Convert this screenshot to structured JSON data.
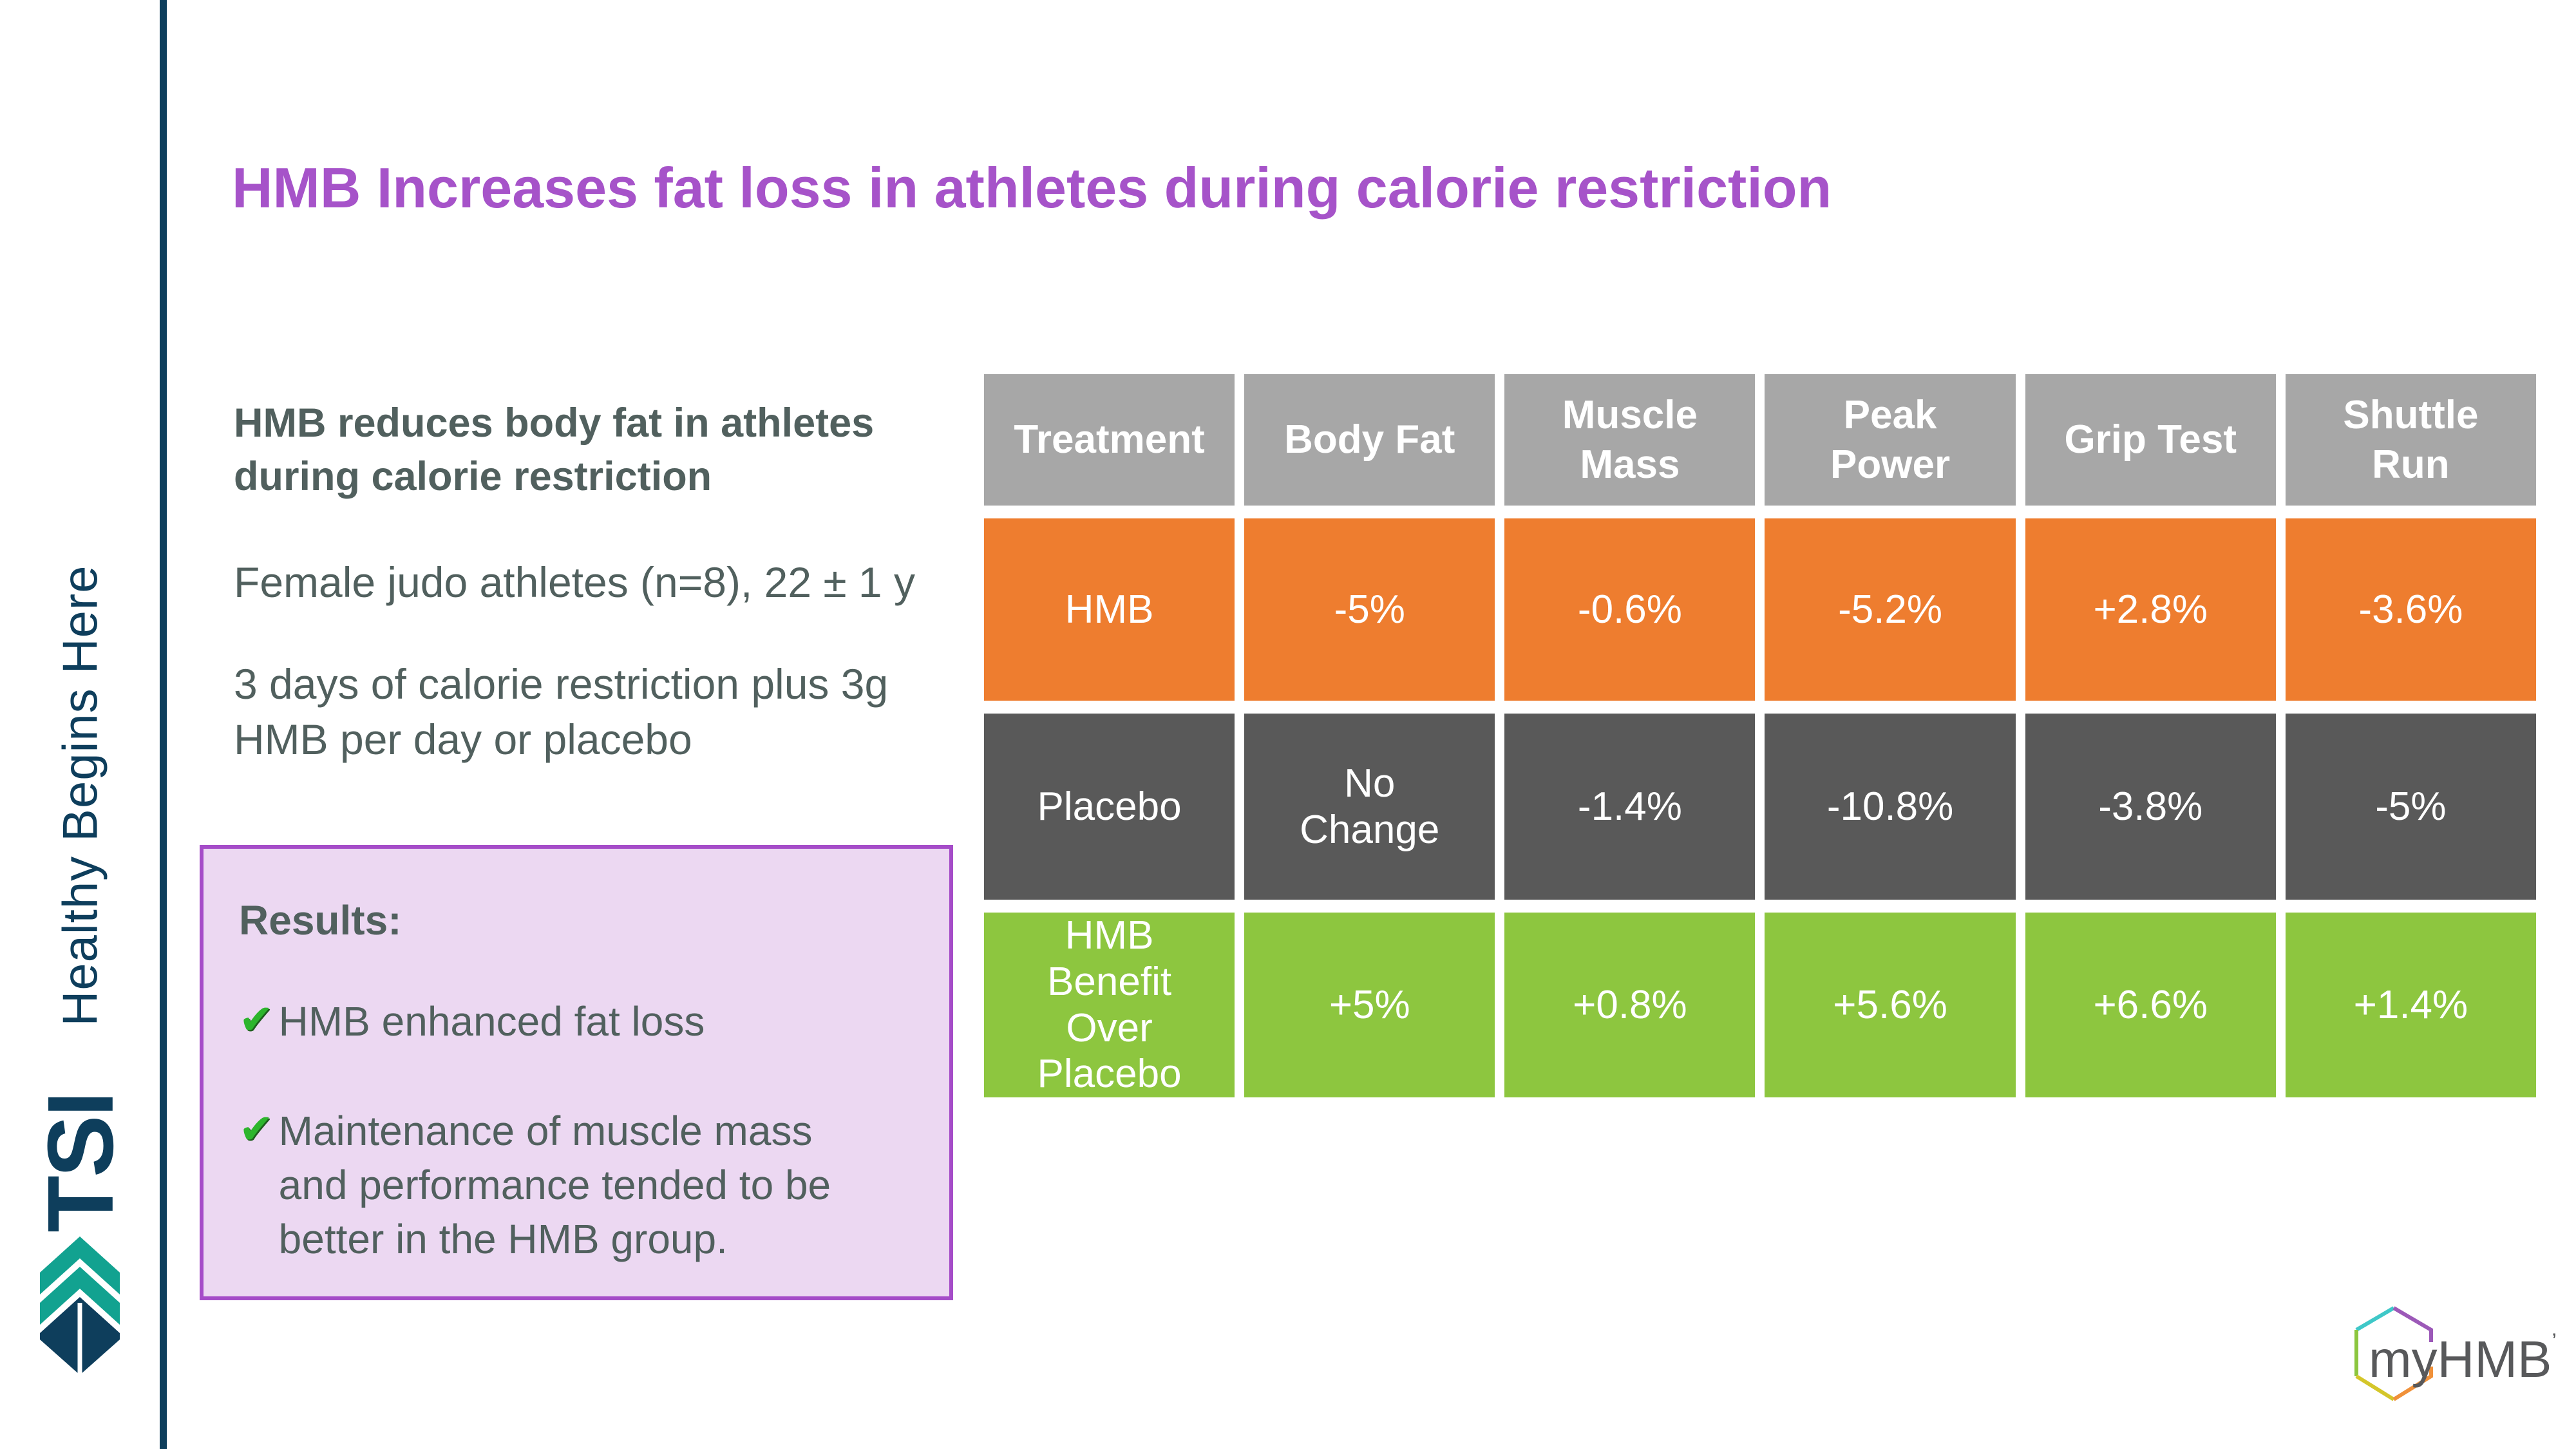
{
  "colors": {
    "navy": "#0e3e5c",
    "purple": "#a653c9",
    "resultsFill": "#ecd8f2",
    "resultsBorder": "#a54cc8",
    "orange": "#ee7d2f",
    "darkGray": "#595959",
    "green": "#8dc63f",
    "headerGray": "#a7a7a7",
    "text": "#51605e",
    "teal": "#12a290",
    "check": "#2db52d",
    "logoGray": "#58595b"
  },
  "sidebar": {
    "tagline": "Healthy Begins Here",
    "brand": "TSI"
  },
  "title": "HMB Increases fat loss in athletes during calorie restriction",
  "study": {
    "heading": "HMB reduces body fat in athletes during calorie restriction",
    "line1": "Female judo athletes (n=8), 22 ± 1 y",
    "line2": "3 days of calorie restriction plus 3g HMB per day or placebo"
  },
  "results": {
    "heading": "Results:",
    "check_icon": "✔",
    "bullets": [
      "HMB enhanced fat loss",
      "Maintenance of muscle mass and performance tended to be better in the HMB group."
    ]
  },
  "table": {
    "headers": [
      "Treatment",
      "Body Fat",
      "Muscle\nMass",
      "Peak\nPower",
      "Grip Test",
      "Shuttle\nRun"
    ],
    "rows": [
      {
        "label": "HMB",
        "style": "hmb",
        "values": [
          "-5%",
          "-0.6%",
          "-5.2%",
          "+2.8%",
          "-3.6%"
        ]
      },
      {
        "label": "Placebo",
        "style": "placebo",
        "values": [
          "No\nChange",
          "-1.4%",
          "-10.8%",
          "-3.8%",
          "-5%"
        ]
      },
      {
        "label": "HMB\nBenefit\nOver\nPlacebo",
        "style": "benefit",
        "values": [
          "+5%",
          "+0.8%",
          "+5.6%",
          "+6.6%",
          "+1.4%"
        ]
      }
    ]
  },
  "logo": {
    "text": "myHMB",
    "trademark": "’"
  }
}
